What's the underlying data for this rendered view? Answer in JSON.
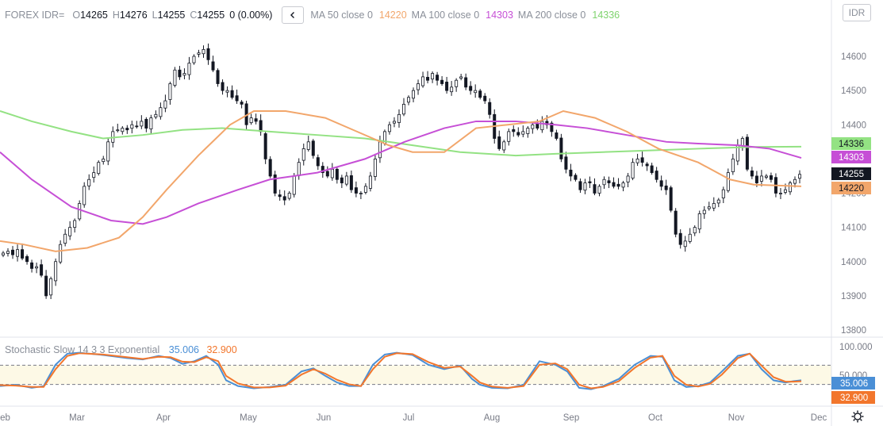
{
  "legend": {
    "symbol": "FOREX IDR=",
    "o_label": "O",
    "o_value": "14265",
    "h_label": "H",
    "h_value": "14276",
    "l_label": "L",
    "l_value": "14255",
    "c_label": "C",
    "c_value": "14255",
    "change": "0 (0.00%)",
    "collapse_icon": "chevron-left-icon",
    "ma50_name": "MA 50 close 0",
    "ma50_value": "14220",
    "ma100_name": "MA 100 close 0",
    "ma100_value": "14303",
    "ma200_name": "MA 200 close 0",
    "ma200_value": "14336"
  },
  "currency_button": "IDR",
  "stochastic_legend": {
    "name": "Stochastic Slow 14 3 3 Exponential",
    "k_value": "35.006",
    "d_value": "32.900"
  },
  "colors": {
    "ma50": "#f2a66b",
    "ma100": "#c64fd6",
    "ma200": "#93e283",
    "k": "#4a8fd6",
    "d": "#f2762c",
    "candle": "#131722",
    "band": "#fdf9e6",
    "grid": "#e0e3eb",
    "axis_text": "#787b86"
  },
  "chart_data": [
    {
      "type": "candlestick",
      "x_labels": [
        "Feb",
        "Mar",
        "Apr",
        "May",
        "Jun",
        "Jul",
        "Aug",
        "Sep",
        "Oct",
        "Nov",
        "Dec"
      ],
      "y_ticks": [
        13800,
        13900,
        14000,
        14100,
        14200,
        14300,
        14400,
        14500,
        14600
      ],
      "ylim": [
        13780,
        14640
      ],
      "price_labels": [
        {
          "text": "14336",
          "value": 14336,
          "color": "#93e283",
          "text_color": "#131722"
        },
        {
          "text": "14303",
          "value": 14303,
          "color": "#c64fd6",
          "text_color": "#ffffff"
        },
        {
          "text": "14255",
          "value": 14255,
          "color": "#131722",
          "text_color": "#ffffff"
        },
        {
          "text": "14220",
          "value": 14220,
          "color": "#f2a66b",
          "text_color": "#131722"
        }
      ],
      "closes": [
        14025,
        14030,
        14020,
        14035,
        14010,
        14000,
        13980,
        13985,
        13960,
        13900,
        13950,
        14000,
        14050,
        14080,
        14100,
        14120,
        14170,
        14220,
        14240,
        14260,
        14290,
        14300,
        14350,
        14380,
        14385,
        14390,
        14385,
        14400,
        14395,
        14410,
        14390,
        14420,
        14430,
        14450,
        14470,
        14520,
        14560,
        14540,
        14550,
        14580,
        14600,
        14610,
        14620,
        14590,
        14560,
        14520,
        14500,
        14500,
        14480,
        14470,
        14460,
        14400,
        14420,
        14410,
        14380,
        14300,
        14250,
        14200,
        14190,
        14180,
        14200,
        14250,
        14290,
        14330,
        14350,
        14310,
        14280,
        14260,
        14250,
        14270,
        14240,
        14230,
        14250,
        14210,
        14200,
        14200,
        14220,
        14250,
        14300,
        14350,
        14380,
        14400,
        14410,
        14430,
        14460,
        14480,
        14500,
        14520,
        14540,
        14530,
        14550,
        14530,
        14520,
        14500,
        14510,
        14530,
        14540,
        14510,
        14500,
        14500,
        14480,
        14470,
        14430,
        14360,
        14330,
        14350,
        14380,
        14380,
        14370,
        14380,
        14390,
        14400,
        14390,
        14410,
        14400,
        14380,
        14360,
        14300,
        14270,
        14250,
        14240,
        14210,
        14230,
        14230,
        14200,
        14220,
        14240,
        14230,
        14220,
        14220,
        14230,
        14250,
        14290,
        14300,
        14290,
        14280,
        14260,
        14240,
        14220,
        14210,
        14150,
        14080,
        14050,
        14060,
        14080,
        14100,
        14140,
        14150,
        14160,
        14170,
        14180,
        14210,
        14260,
        14300,
        14340,
        14360,
        14270,
        14250,
        14230,
        14250,
        14250,
        14240,
        14200,
        14200,
        14210,
        14230,
        14240,
        14255
      ],
      "ma50": [
        [
          0,
          14060
        ],
        [
          30,
          14050
        ],
        [
          70,
          14030
        ],
        [
          110,
          14040
        ],
        [
          150,
          14070
        ],
        [
          180,
          14130
        ],
        [
          210,
          14210
        ],
        [
          250,
          14310
        ],
        [
          290,
          14400
        ],
        [
          320,
          14440
        ],
        [
          360,
          14440
        ],
        [
          410,
          14420
        ],
        [
          450,
          14380
        ],
        [
          490,
          14340
        ],
        [
          520,
          14320
        ],
        [
          560,
          14320
        ],
        [
          600,
          14390
        ],
        [
          640,
          14400
        ],
        [
          680,
          14410
        ],
        [
          710,
          14440
        ],
        [
          750,
          14420
        ],
        [
          790,
          14380
        ],
        [
          830,
          14330
        ],
        [
          880,
          14290
        ],
        [
          920,
          14240
        ],
        [
          950,
          14225
        ],
        [
          1010,
          14220
        ]
      ],
      "ma100": [
        [
          0,
          14320
        ],
        [
          40,
          14240
        ],
        [
          90,
          14160
        ],
        [
          140,
          14120
        ],
        [
          180,
          14110
        ],
        [
          210,
          14130
        ],
        [
          250,
          14170
        ],
        [
          300,
          14210
        ],
        [
          340,
          14240
        ],
        [
          400,
          14260
        ],
        [
          460,
          14300
        ],
        [
          510,
          14350
        ],
        [
          560,
          14390
        ],
        [
          600,
          14410
        ],
        [
          650,
          14410
        ],
        [
          700,
          14400
        ],
        [
          740,
          14390
        ],
        [
          790,
          14370
        ],
        [
          840,
          14350
        ],
        [
          880,
          14345
        ],
        [
          930,
          14340
        ],
        [
          970,
          14330
        ],
        [
          1010,
          14303
        ]
      ],
      "ma200": [
        [
          0,
          14440
        ],
        [
          40,
          14410
        ],
        [
          90,
          14380
        ],
        [
          130,
          14360
        ],
        [
          180,
          14370
        ],
        [
          230,
          14385
        ],
        [
          280,
          14390
        ],
        [
          340,
          14380
        ],
        [
          400,
          14370
        ],
        [
          460,
          14360
        ],
        [
          520,
          14340
        ],
        [
          580,
          14320
        ],
        [
          650,
          14310
        ],
        [
          700,
          14315
        ],
        [
          760,
          14320
        ],
        [
          820,
          14325
        ],
        [
          880,
          14330
        ],
        [
          950,
          14335
        ],
        [
          1010,
          14336
        ]
      ]
    },
    {
      "type": "line",
      "name": "Stochastic Slow 14 3 3 Exponential",
      "ylim": [
        0,
        110
      ],
      "y_ticks": [
        {
          "label": "100.000",
          "value": 100
        },
        {
          "label": "50.000",
          "value": 50
        }
      ],
      "band": [
        20,
        80
      ],
      "price_labels": [
        {
          "text": "35.006",
          "value": 35.006,
          "color": "#4a8fd6"
        },
        {
          "text": "32.900",
          "value": 32.9,
          "color": "#f2762c"
        }
      ],
      "k": [
        [
          0,
          22
        ],
        [
          20,
          25
        ],
        [
          40,
          18
        ],
        [
          55,
          22
        ],
        [
          70,
          70
        ],
        [
          85,
          95
        ],
        [
          100,
          97
        ],
        [
          130,
          92
        ],
        [
          160,
          85
        ],
        [
          180,
          82
        ],
        [
          200,
          90
        ],
        [
          215,
          85
        ],
        [
          230,
          72
        ],
        [
          245,
          78
        ],
        [
          260,
          90
        ],
        [
          275,
          70
        ],
        [
          285,
          35
        ],
        [
          300,
          22
        ],
        [
          320,
          17
        ],
        [
          340,
          20
        ],
        [
          360,
          25
        ],
        [
          380,
          55
        ],
        [
          395,
          62
        ],
        [
          410,
          45
        ],
        [
          425,
          30
        ],
        [
          440,
          22
        ],
        [
          455,
          22
        ],
        [
          470,
          70
        ],
        [
          485,
          93
        ],
        [
          500,
          97
        ],
        [
          520,
          92
        ],
        [
          540,
          70
        ],
        [
          560,
          60
        ],
        [
          580,
          68
        ],
        [
          595,
          38
        ],
        [
          605,
          25
        ],
        [
          620,
          18
        ],
        [
          640,
          17
        ],
        [
          660,
          25
        ],
        [
          680,
          78
        ],
        [
          700,
          70
        ],
        [
          715,
          55
        ],
        [
          730,
          18
        ],
        [
          745,
          15
        ],
        [
          760,
          22
        ],
        [
          780,
          38
        ],
        [
          800,
          70
        ],
        [
          820,
          90
        ],
        [
          835,
          88
        ],
        [
          850,
          35
        ],
        [
          865,
          20
        ],
        [
          880,
          22
        ],
        [
          895,
          30
        ],
        [
          910,
          55
        ],
        [
          930,
          90
        ],
        [
          945,
          95
        ],
        [
          960,
          60
        ],
        [
          975,
          35
        ],
        [
          990,
          30
        ],
        [
          1000,
          33
        ],
        [
          1010,
          35
        ]
      ],
      "d": [
        [
          0,
          24
        ],
        [
          20,
          23
        ],
        [
          40,
          20
        ],
        [
          55,
          20
        ],
        [
          70,
          60
        ],
        [
          85,
          90
        ],
        [
          100,
          96
        ],
        [
          130,
          93
        ],
        [
          160,
          87
        ],
        [
          180,
          83
        ],
        [
          200,
          88
        ],
        [
          215,
          87
        ],
        [
          230,
          77
        ],
        [
          245,
          76
        ],
        [
          260,
          87
        ],
        [
          275,
          78
        ],
        [
          285,
          45
        ],
        [
          300,
          28
        ],
        [
          320,
          19
        ],
        [
          340,
          19
        ],
        [
          360,
          23
        ],
        [
          380,
          48
        ],
        [
          395,
          60
        ],
        [
          410,
          50
        ],
        [
          425,
          36
        ],
        [
          440,
          26
        ],
        [
          455,
          22
        ],
        [
          470,
          60
        ],
        [
          485,
          88
        ],
        [
          500,
          96
        ],
        [
          520,
          94
        ],
        [
          540,
          76
        ],
        [
          560,
          63
        ],
        [
          580,
          66
        ],
        [
          595,
          45
        ],
        [
          605,
          30
        ],
        [
          620,
          21
        ],
        [
          640,
          18
        ],
        [
          660,
          22
        ],
        [
          680,
          70
        ],
        [
          700,
          73
        ],
        [
          715,
          60
        ],
        [
          730,
          25
        ],
        [
          745,
          17
        ],
        [
          760,
          20
        ],
        [
          780,
          33
        ],
        [
          800,
          63
        ],
        [
          820,
          86
        ],
        [
          835,
          90
        ],
        [
          850,
          45
        ],
        [
          865,
          25
        ],
        [
          880,
          21
        ],
        [
          895,
          27
        ],
        [
          910,
          48
        ],
        [
          930,
          85
        ],
        [
          945,
          95
        ],
        [
          960,
          68
        ],
        [
          975,
          42
        ],
        [
          990,
          32
        ],
        [
          1000,
          32
        ],
        [
          1010,
          32.9
        ]
      ]
    }
  ]
}
